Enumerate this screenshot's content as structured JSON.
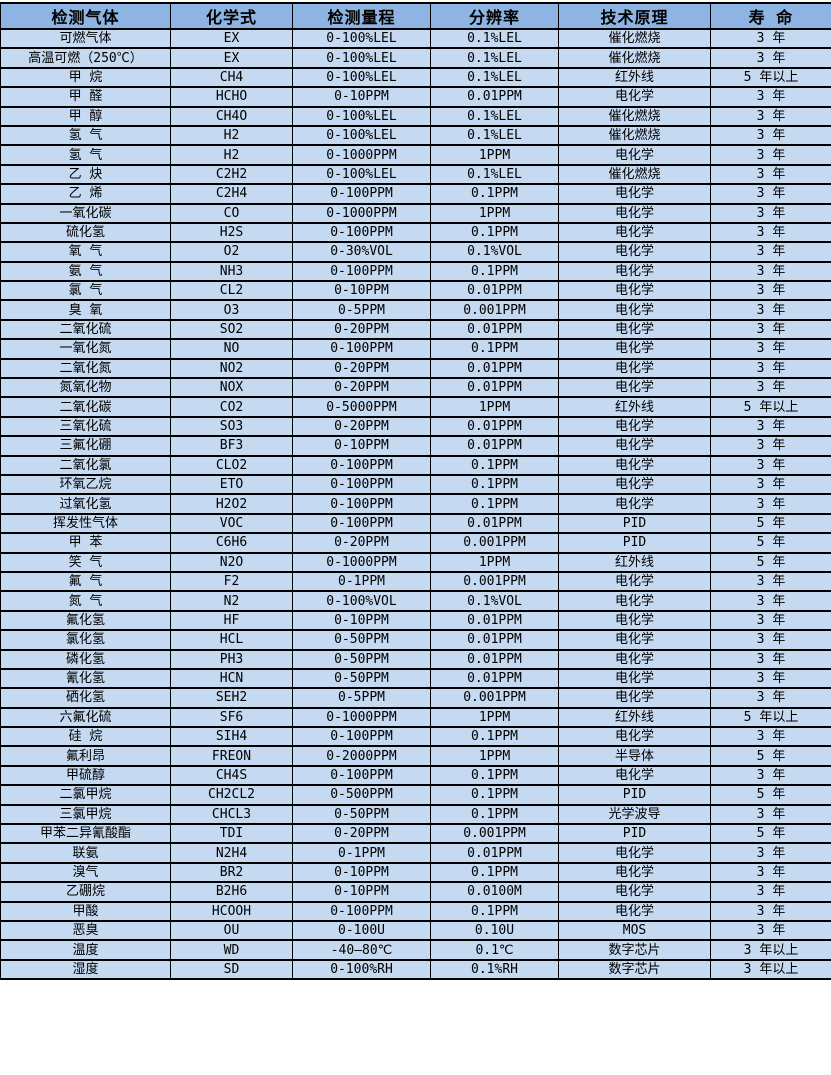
{
  "table": {
    "title": "gas-sensor-specs",
    "headers": [
      "检测气体",
      "化学式",
      "检测量程",
      "分辨率",
      "技术原理",
      "寿 命"
    ],
    "colors": {
      "header_bg": "#8db4e2",
      "row_bg": "#c5d9f1",
      "border": "#000000",
      "text": "#000000"
    },
    "rows": [
      [
        "可燃气体",
        "EX",
        "0-100%LEL",
        "0.1%LEL",
        "催化燃烧",
        "3 年"
      ],
      [
        "高温可燃（250℃）",
        "EX",
        "0-100%LEL",
        "0.1%LEL",
        "催化燃烧",
        "3 年"
      ],
      [
        "甲 烷",
        "CH4",
        "0-100%LEL",
        "0.1%LEL",
        "红外线",
        "5 年以上"
      ],
      [
        "甲 醛",
        "HCHO",
        "0-10PPM",
        "0.01PPM",
        "电化学",
        "3 年"
      ],
      [
        "甲 醇",
        "CH4O",
        "0-100%LEL",
        "0.1%LEL",
        "催化燃烧",
        "3 年"
      ],
      [
        "氢 气",
        "H2",
        "0-100%LEL",
        "0.1%LEL",
        "催化燃烧",
        "3 年"
      ],
      [
        "氢 气",
        "H2",
        "0-1000PPM",
        "1PPM",
        "电化学",
        "3 年"
      ],
      [
        "乙 炔",
        "C2H2",
        "0-100%LEL",
        "0.1%LEL",
        "催化燃烧",
        "3 年"
      ],
      [
        "乙 烯",
        "C2H4",
        "0-100PPM",
        "0.1PPM",
        "电化学",
        "3 年"
      ],
      [
        "一氧化碳",
        "CO",
        "0-1000PPM",
        "1PPM",
        "电化学",
        "3 年"
      ],
      [
        "硫化氢",
        "H2S",
        "0-100PPM",
        "0.1PPM",
        "电化学",
        "3 年"
      ],
      [
        "氧 气",
        "O2",
        "0-30%VOL",
        "0.1%VOL",
        "电化学",
        "3 年"
      ],
      [
        "氨 气",
        "NH3",
        "0-100PPM",
        "0.1PPM",
        "电化学",
        "3 年"
      ],
      [
        "氯 气",
        "CL2",
        "0-10PPM",
        "0.01PPM",
        "电化学",
        "3 年"
      ],
      [
        "臭 氧",
        "O3",
        "0-5PPM",
        "0.001PPM",
        "电化学",
        "3 年"
      ],
      [
        "二氧化硫",
        "SO2",
        "0-20PPM",
        "0.01PPM",
        "电化学",
        "3 年"
      ],
      [
        "一氧化氮",
        "NO",
        "0-100PPM",
        "0.1PPM",
        "电化学",
        "3 年"
      ],
      [
        "二氧化氮",
        "NO2",
        "0-20PPM",
        "0.01PPM",
        "电化学",
        "3 年"
      ],
      [
        "氮氧化物",
        "NOX",
        "0-20PPM",
        "0.01PPM",
        "电化学",
        "3 年"
      ],
      [
        "二氧化碳",
        "CO2",
        "0-5000PPM",
        "1PPM",
        "红外线",
        "5 年以上"
      ],
      [
        "三氧化硫",
        "SO3",
        "0-20PPM",
        "0.01PPM",
        "电化学",
        "3 年"
      ],
      [
        "三氟化硼",
        "BF3",
        "0-10PPM",
        "0.01PPM",
        "电化学",
        "3 年"
      ],
      [
        "二氧化氯",
        "CLO2",
        "0-100PPM",
        "0.1PPM",
        "电化学",
        "3 年"
      ],
      [
        "环氧乙烷",
        "ETO",
        "0-100PPM",
        "0.1PPM",
        "电化学",
        "3 年"
      ],
      [
        "过氧化氢",
        "H2O2",
        "0-100PPM",
        "0.1PPM",
        "电化学",
        "3 年"
      ],
      [
        "挥发性气体",
        "VOC",
        "0-100PPM",
        "0.01PPM",
        "PID",
        "5 年"
      ],
      [
        "甲 苯",
        "C6H6",
        "0-20PPM",
        "0.001PPM",
        "PID",
        "5 年"
      ],
      [
        "笑 气",
        "N2O",
        "0-1000PPM",
        "1PPM",
        "红外线",
        "5 年"
      ],
      [
        "氟 气",
        "F2",
        "0-1PPM",
        "0.001PPM",
        "电化学",
        "3 年"
      ],
      [
        "氮 气",
        "N2",
        "0-100%VOL",
        "0.1%VOL",
        "电化学",
        "3 年"
      ],
      [
        "氟化氢",
        "HF",
        "0-10PPM",
        "0.01PPM",
        "电化学",
        "3 年"
      ],
      [
        "氯化氢",
        "HCL",
        "0-50PPM",
        "0.01PPM",
        "电化学",
        "3 年"
      ],
      [
        "磷化氢",
        "PH3",
        "0-50PPM",
        "0.01PPM",
        "电化学",
        "3 年"
      ],
      [
        "氰化氢",
        "HCN",
        "0-50PPM",
        "0.01PPM",
        "电化学",
        "3 年"
      ],
      [
        "硒化氢",
        "SEH2",
        "0-5PPM",
        "0.001PPM",
        "电化学",
        "3 年"
      ],
      [
        "六氟化硫",
        "SF6",
        "0-1000PPM",
        "1PPM",
        "红外线",
        "5 年以上"
      ],
      [
        "硅 烷",
        "SIH4",
        "0-100PPM",
        "0.1PPM",
        "电化学",
        "3 年"
      ],
      [
        "氟利昂",
        "FREON",
        "0-2000PPM",
        "1PPM",
        "半导体",
        "5 年"
      ],
      [
        "甲硫醇",
        "CH4S",
        "0-100PPM",
        "0.1PPM",
        "电化学",
        "3 年"
      ],
      [
        "二氯甲烷",
        "CH2CL2",
        "0-500PPM",
        "0.1PPM",
        "PID",
        "5 年"
      ],
      [
        "三氯甲烷",
        "CHCL3",
        "0-50PPM",
        "0.1PPM",
        "光学波导",
        "3 年"
      ],
      [
        "甲苯二异氰酸酯",
        "TDI",
        "0-20PPM",
        "0.001PPM",
        "PID",
        "5 年"
      ],
      [
        "联氨",
        "N2H4",
        "0-1PPM",
        "0.01PPM",
        "电化学",
        "3 年"
      ],
      [
        "溴气",
        "BR2",
        "0-10PPM",
        "0.1PPM",
        "电化学",
        "3 年"
      ],
      [
        "乙硼烷",
        "B2H6",
        "0-10PPM",
        "0.0100M",
        "电化学",
        "3 年"
      ],
      [
        "甲酸",
        "HCOOH",
        "0-100PPM",
        "0.1PPM",
        "电化学",
        "3 年"
      ],
      [
        "恶臭",
        "OU",
        "0-100U",
        "0.10U",
        "MOS",
        "3 年"
      ],
      [
        "温度",
        "WD",
        "-40—80℃",
        "0.1℃",
        "数字芯片",
        "3 年以上"
      ],
      [
        "湿度",
        "SD",
        "0-100%RH",
        "0.1%RH",
        "数字芯片",
        "3 年以上"
      ]
    ]
  }
}
